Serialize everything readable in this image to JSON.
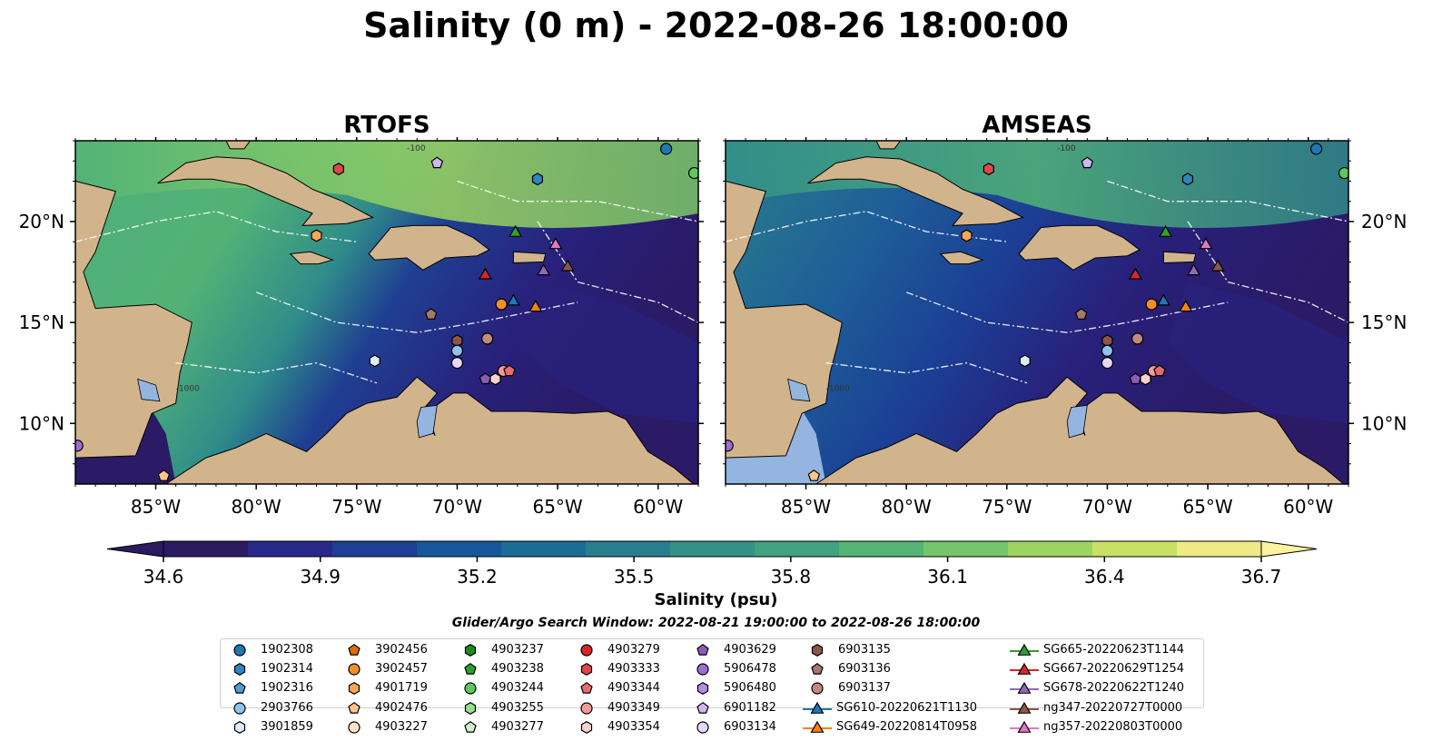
{
  "title": "Salinity (0 m) - 2022-08-26 18:00:00",
  "panels": [
    {
      "name": "RTOFS",
      "left_lat_labels": [
        "20°N",
        "15°N",
        "10°N"
      ],
      "lon_labels": [
        "85°W",
        "80°W",
        "75°W",
        "70°W",
        "65°W",
        "60°W"
      ]
    },
    {
      "name": "AMSEAS",
      "right_lat_labels": [
        "20°N",
        "15°N",
        "10°N"
      ],
      "lon_labels": [
        "85°W",
        "80°W",
        "75°W",
        "70°W",
        "65°W",
        "60°W"
      ]
    }
  ],
  "colorbar": {
    "label": "Salinity (psu)",
    "ticks": [
      "34.6",
      "34.9",
      "35.2",
      "35.5",
      "35.8",
      "36.1",
      "36.4",
      "36.7"
    ],
    "min": 34.6,
    "max": 36.7,
    "colors": [
      "#2b1a60",
      "#27298a",
      "#1d3f97",
      "#16579a",
      "#1a6d96",
      "#277f8e",
      "#339189",
      "#3fa281",
      "#53b476",
      "#75c56a",
      "#9dd45f",
      "#c8e063",
      "#eeea84"
    ]
  },
  "contour_labels": [
    "-100",
    "-1000"
  ],
  "search_window": "Glider/Argo Search Window: 2022-08-21 19:00:00 to 2022-08-26 18:00:00",
  "legend": {
    "columns": [
      [
        {
          "label": "1902308",
          "marker": "circle",
          "color": "#1f77b4"
        },
        {
          "label": "1902314",
          "marker": "hexagon",
          "color": "#2e86c1"
        },
        {
          "label": "1902316",
          "marker": "pentagon",
          "color": "#4a9fd8"
        },
        {
          "label": "2903766",
          "marker": "circle",
          "color": "#8ec4eb"
        },
        {
          "label": "3901859",
          "marker": "hexagon",
          "color": "#dcecf8"
        }
      ],
      [
        {
          "label": "3902456",
          "marker": "pentagon",
          "color": "#e26a00"
        },
        {
          "label": "3902457",
          "marker": "circle",
          "color": "#f28e2b"
        },
        {
          "label": "4901719",
          "marker": "hexagon",
          "color": "#f7a65a"
        },
        {
          "label": "4902476",
          "marker": "pentagon",
          "color": "#fbc58d"
        },
        {
          "label": "4903227",
          "marker": "circle",
          "color": "#fde3c6"
        }
      ],
      [
        {
          "label": "4903237",
          "marker": "hexagon",
          "color": "#1e8a24"
        },
        {
          "label": "4903238",
          "marker": "pentagon",
          "color": "#2ca02c"
        },
        {
          "label": "4903244",
          "marker": "circle",
          "color": "#5cc95c"
        },
        {
          "label": "4903255",
          "marker": "hexagon",
          "color": "#98df8a"
        },
        {
          "label": "4903277",
          "marker": "pentagon",
          "color": "#d3f2cc"
        }
      ],
      [
        {
          "label": "4903279",
          "marker": "circle",
          "color": "#d62728"
        },
        {
          "label": "4903333",
          "marker": "hexagon",
          "color": "#e0474a"
        },
        {
          "label": "4903344",
          "marker": "pentagon",
          "color": "#ea6b6e"
        },
        {
          "label": "4903349",
          "marker": "circle",
          "color": "#f49a9a"
        },
        {
          "label": "4903354",
          "marker": "hexagon",
          "color": "#fcd2d0"
        }
      ],
      [
        {
          "label": "4903629",
          "marker": "pentagon",
          "color": "#8a5bbf"
        },
        {
          "label": "5906478",
          "marker": "circle",
          "color": "#9c6ed0"
        },
        {
          "label": "5906480",
          "marker": "hexagon",
          "color": "#b38de0"
        },
        {
          "label": "6901182",
          "marker": "pentagon",
          "color": "#cfb6f0"
        },
        {
          "label": "6903134",
          "marker": "circle",
          "color": "#e6d8fa"
        }
      ],
      [
        {
          "label": "6903135",
          "marker": "hexagon",
          "color": "#8c564b"
        },
        {
          "label": "6903136",
          "marker": "pentagon",
          "color": "#a8786b"
        },
        {
          "label": "6903137",
          "marker": "circle",
          "color": "#c4897c"
        },
        {
          "label": "SG610-20220621T1130",
          "marker": "triangle",
          "color": "#1f77b4"
        },
        {
          "label": "SG649-20220814T0958",
          "marker": "triangle",
          "color": "#ff7f0e"
        }
      ],
      [
        {
          "label": "SG665-20220623T1144",
          "marker": "triangle",
          "color": "#2ca02c"
        },
        {
          "label": "SG667-20220629T1254",
          "marker": "triangle",
          "color": "#d62728"
        },
        {
          "label": "SG678-20220622T1240",
          "marker": "triangle",
          "color": "#9467bd"
        },
        {
          "label": "ng347-20220727T0000",
          "marker": "triangle",
          "color": "#8c564b"
        },
        {
          "label": "ng357-20220803T0000",
          "marker": "triangle",
          "color": "#e377c2"
        }
      ]
    ]
  },
  "map_markers": [
    {
      "id": "1902308",
      "lon": -59.6,
      "lat": 23.6
    },
    {
      "id": "1902314",
      "lon": -66.0,
      "lat": 22.1
    },
    {
      "id": "6901182",
      "lon": -71.0,
      "lat": 22.9
    },
    {
      "id": "4903333",
      "lon": -75.9,
      "lat": 22.6
    },
    {
      "id": "4901719",
      "lon": -77.0,
      "lat": 19.3
    },
    {
      "id": "SG665-20220623T1144",
      "lon": -67.1,
      "lat": 19.5
    },
    {
      "id": "ng357-20220803T0000",
      "lon": -65.1,
      "lat": 18.9
    },
    {
      "id": "SG678-20220622T1240",
      "lon": -65.7,
      "lat": 17.6
    },
    {
      "id": "ng347-20220727T0000",
      "lon": -64.5,
      "lat": 17.8
    },
    {
      "id": "SG667-20220629T1254",
      "lon": -68.6,
      "lat": 17.4
    },
    {
      "id": "3902457",
      "lon": -67.8,
      "lat": 15.9
    },
    {
      "id": "SG610-20220621T1130",
      "lon": -67.2,
      "lat": 16.1
    },
    {
      "id": "SG649-20220814T0958",
      "lon": -66.1,
      "lat": 15.8
    },
    {
      "id": "6903136",
      "lon": -71.3,
      "lat": 15.4
    },
    {
      "id": "6903135",
      "lon": -70.0,
      "lat": 14.1
    },
    {
      "id": "6903137",
      "lon": -68.5,
      "lat": 14.2
    },
    {
      "id": "2903766",
      "lon": -70.0,
      "lat": 13.6
    },
    {
      "id": "3901859",
      "lon": -74.1,
      "lat": 13.1
    },
    {
      "id": "6903134",
      "lon": -70.0,
      "lat": 13.0
    },
    {
      "id": "4903349",
      "lon": -67.7,
      "lat": 12.6
    },
    {
      "id": "4903344",
      "lon": -67.4,
      "lat": 12.6
    },
    {
      "id": "4903629",
      "lon": -68.6,
      "lat": 12.2
    },
    {
      "id": "4903354",
      "lon": -68.1,
      "lat": 12.2
    },
    {
      "id": "5906478",
      "lon": -88.9,
      "lat": 8.9
    },
    {
      "id": "4902476",
      "lon": -84.6,
      "lat": 7.4
    },
    {
      "id": "4903244",
      "lon": -58.2,
      "lat": 22.4
    }
  ]
}
